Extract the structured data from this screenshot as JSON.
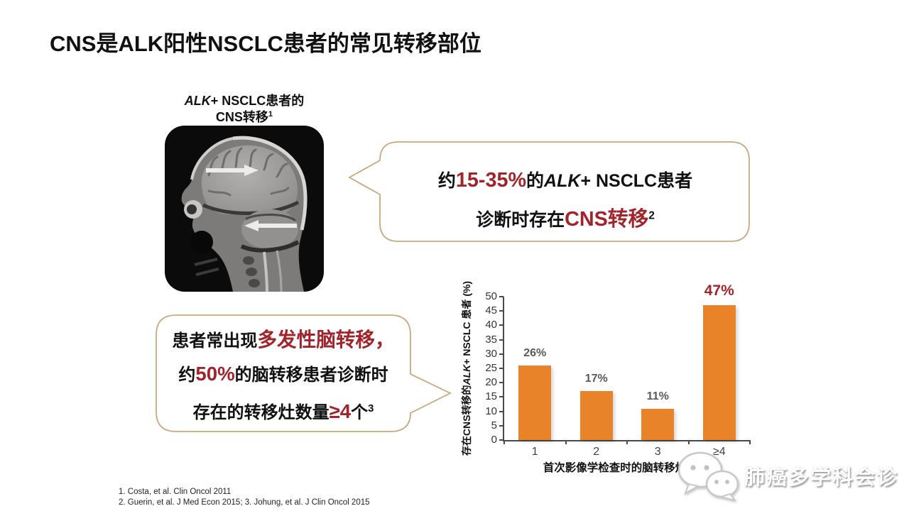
{
  "title": "CNS是ALK阳性NSCLC患者的常见转移部位",
  "mri": {
    "caption": {
      "italic": "ALK",
      "line1_rest": "+ NSCLC患者的",
      "line2": "CNS转移",
      "sup": "1"
    }
  },
  "callout_top": {
    "line1": {
      "pre": "约",
      "em": "15-35%",
      "mid": "的",
      "italic": "ALK",
      "post": "+ NSCLC患者"
    },
    "line2": {
      "pre": "诊断时存在",
      "em": "CNS转移",
      "sup": "2"
    }
  },
  "callout_bottom": {
    "line1": {
      "pre": "患者常出现",
      "em": "多发性脑转移，"
    },
    "line2": {
      "pre": "约",
      "em": "50%",
      "post": "的脑转移患者诊断时"
    },
    "line3": {
      "pre": "存在的转移灶数量",
      "em": "≥4",
      "post": "个",
      "sup": "3"
    }
  },
  "chart_data": {
    "type": "bar",
    "categories": [
      "1",
      "2",
      "3",
      "≥4"
    ],
    "values": [
      26,
      17,
      11,
      47
    ],
    "data_labels": [
      "26%",
      "17%",
      "11%",
      "47%"
    ],
    "emphasized_index": 3,
    "title": "",
    "xlabel": "首次影像学检查时的脑转移灶数量",
    "ylabel": "存在CNS转移的ALK+ NSCLC 患者 (%)",
    "ylabel_segments": {
      "pre": "存在CNS转移的",
      "italic": "ALK",
      "post": "+ NSCLC 患者 (%)"
    },
    "ylim": [
      0,
      50
    ],
    "ytick_step": 5,
    "grid": false,
    "legend": "none",
    "bar_color": "#E8832A",
    "label_color": "#595959",
    "emphasis_color": "#A2242B"
  },
  "references": [
    "1. Costa, et al. Clin Oncol 2011",
    "2. Guerin, et al. J Med Econ 2015; 3. Johung, et al. J Clin Oncol 2015"
  ],
  "watermark": {
    "text": "肺癌多学科会诊",
    "icon": "wechat-chat-bubbles-icon"
  },
  "colors": {
    "accent_red": "#A2242B",
    "bar_orange": "#E8832A",
    "bubble_border": "#C9A87C"
  }
}
